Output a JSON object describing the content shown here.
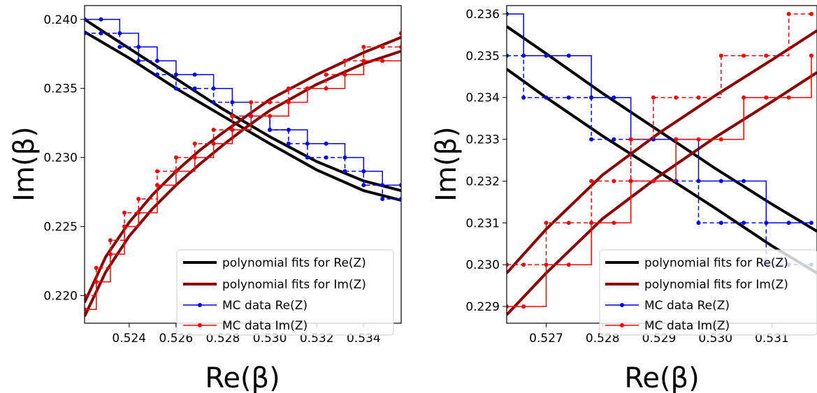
{
  "chart_data": [
    {
      "type": "line",
      "xlabel": "Re(β)",
      "ylabel": "Im(β)",
      "xlim": [
        0.5221,
        0.5356
      ],
      "ylim": [
        0.218,
        0.241
      ],
      "xticks": [
        "0.524",
        "0.526",
        "0.528",
        "0.530",
        "0.532",
        "0.534"
      ],
      "yticks": [
        "0.220",
        "0.225",
        "0.230",
        "0.235",
        "0.240"
      ],
      "legend_position": "lower-right",
      "legend": [
        "polynomial fits for Re(Z)",
        "polynomial fits for Im(Z)",
        "MC data Re(Z)",
        "MC data Im(Z)"
      ],
      "series": [
        {
          "name": "polynomial fits for Re(Z)",
          "style": "solid-thick",
          "color": "#000000",
          "x": [
            0.5221,
            0.524,
            0.526,
            0.528,
            0.53,
            0.532,
            0.534,
            0.5356
          ],
          "y": [
            0.24,
            0.2379,
            0.2357,
            0.2335,
            0.2315,
            0.2297,
            0.2283,
            0.2276
          ]
        },
        {
          "name": "polynomial fits for Re(Z)",
          "style": "solid-thick",
          "color": "#000000",
          "x": [
            0.5221,
            0.524,
            0.526,
            0.528,
            0.53,
            0.532,
            0.534,
            0.5356
          ],
          "y": [
            0.2391,
            0.2372,
            0.235,
            0.233,
            0.231,
            0.2291,
            0.2276,
            0.2269
          ]
        },
        {
          "name": "polynomial fits for Im(Z)",
          "style": "solid-thick",
          "color": "#8b0000",
          "x": [
            0.5221,
            0.523,
            0.524,
            0.525,
            0.526,
            0.527,
            0.528,
            0.529,
            0.53,
            0.532,
            0.534,
            0.5356
          ],
          "y": [
            0.2195,
            0.2228,
            0.2253,
            0.2273,
            0.229,
            0.2305,
            0.2318,
            0.233,
            0.2342,
            0.236,
            0.2376,
            0.2387
          ]
        },
        {
          "name": "polynomial fits for Im(Z)",
          "style": "solid-thick",
          "color": "#8b0000",
          "x": [
            0.5221,
            0.523,
            0.524,
            0.525,
            0.526,
            0.527,
            0.528,
            0.529,
            0.53,
            0.532,
            0.534,
            0.5356
          ],
          "y": [
            0.2185,
            0.2217,
            0.2243,
            0.2263,
            0.228,
            0.2295,
            0.2309,
            0.2322,
            0.2334,
            0.2353,
            0.2368,
            0.2377
          ]
        },
        {
          "name": "MC data Re(Z)",
          "style": "solid-markers",
          "color": "#0000ff",
          "x": [
            0.5221,
            0.5228,
            0.5236,
            0.5244,
            0.5252,
            0.526,
            0.5268,
            0.5276,
            0.5284,
            0.5292,
            0.53,
            0.5308,
            0.5316,
            0.5324,
            0.5332,
            0.534,
            0.5348,
            0.5356
          ],
          "y": [
            0.24,
            0.24,
            0.239,
            0.238,
            0.237,
            0.236,
            0.236,
            0.235,
            0.234,
            0.233,
            0.232,
            0.232,
            0.231,
            0.231,
            0.23,
            0.229,
            0.228,
            0.228
          ]
        },
        {
          "name": "MC data Re(Z)",
          "style": "dashed-markers",
          "color": "#0000ff",
          "x": [
            0.5221,
            0.5228,
            0.5236,
            0.5244,
            0.5252,
            0.526,
            0.5268,
            0.5276,
            0.5284,
            0.5292,
            0.53,
            0.5308,
            0.5316,
            0.5324,
            0.5332,
            0.534,
            0.5348,
            0.5356
          ],
          "y": [
            0.239,
            0.239,
            0.238,
            0.237,
            0.236,
            0.235,
            0.235,
            0.234,
            0.233,
            0.233,
            0.232,
            0.231,
            0.23,
            0.23,
            0.229,
            0.228,
            0.227,
            0.227
          ]
        },
        {
          "name": "MC data Im(Z)",
          "style": "solid-markers",
          "color": "#ff0000",
          "x": [
            0.5221,
            0.5226,
            0.5232,
            0.5238,
            0.5244,
            0.5252,
            0.526,
            0.5268,
            0.5276,
            0.5284,
            0.5292,
            0.53,
            0.5308,
            0.5316,
            0.5324,
            0.5332,
            0.534,
            0.5348,
            0.5356
          ],
          "y": [
            0.219,
            0.221,
            0.223,
            0.225,
            0.226,
            0.228,
            0.229,
            0.23,
            0.231,
            0.232,
            0.233,
            0.233,
            0.234,
            0.235,
            0.235,
            0.236,
            0.237,
            0.237,
            0.238
          ]
        },
        {
          "name": "MC data Im(Z)",
          "style": "dashed-markers",
          "color": "#ff0000",
          "x": [
            0.5221,
            0.5226,
            0.5232,
            0.5238,
            0.5244,
            0.5252,
            0.526,
            0.5268,
            0.5276,
            0.5284,
            0.5292,
            0.53,
            0.5308,
            0.5316,
            0.5324,
            0.5332,
            0.534,
            0.5348,
            0.5356
          ],
          "y": [
            0.22,
            0.222,
            0.224,
            0.226,
            0.227,
            0.229,
            0.23,
            0.231,
            0.232,
            0.233,
            0.234,
            0.234,
            0.235,
            0.235,
            0.236,
            0.237,
            0.238,
            0.238,
            0.239
          ]
        }
      ]
    },
    {
      "type": "line",
      "xlabel": "Re(β)",
      "ylabel": "Im(β)",
      "xlim": [
        0.5263,
        0.5318
      ],
      "ylim": [
        0.2286,
        0.2362
      ],
      "xticks": [
        "0.527",
        "0.528",
        "0.529",
        "0.530",
        "0.531"
      ],
      "yticks": [
        "0.229",
        "0.230",
        "0.231",
        "0.232",
        "0.233",
        "0.234",
        "0.235",
        "0.236"
      ],
      "legend_position": "lower-right",
      "legend": [
        "polynomial fits for Re(Z)",
        "polynomial fits for Im(Z)",
        "MC data Re(Z)",
        "MC data Im(Z)"
      ],
      "series": [
        {
          "name": "polynomial fits for Re(Z)",
          "style": "solid-thick",
          "color": "#000000",
          "x": [
            0.5263,
            0.527,
            0.528,
            0.529,
            0.53,
            0.531,
            0.5318
          ],
          "y": [
            0.2357,
            0.23505,
            0.2341,
            0.2332,
            0.2323,
            0.23145,
            0.2308
          ]
        },
        {
          "name": "polynomial fits for Re(Z)",
          "style": "solid-thick",
          "color": "#000000",
          "x": [
            0.5263,
            0.527,
            0.528,
            0.529,
            0.53,
            0.531,
            0.5318
          ],
          "y": [
            0.23468,
            0.234,
            0.23308,
            0.23222,
            0.23135,
            0.23045,
            0.2298
          ]
        },
        {
          "name": "polynomial fits for Im(Z)",
          "style": "solid-thick",
          "color": "#8b0000",
          "x": [
            0.5263,
            0.527,
            0.528,
            0.529,
            0.53,
            0.531,
            0.5318
          ],
          "y": [
            0.2298,
            0.23085,
            0.23215,
            0.23315,
            0.23405,
            0.2349,
            0.2356
          ]
        },
        {
          "name": "polynomial fits for Im(Z)",
          "style": "solid-thick",
          "color": "#8b0000",
          "x": [
            0.5263,
            0.527,
            0.528,
            0.529,
            0.53,
            0.531,
            0.5318
          ],
          "y": [
            0.2288,
            0.2298,
            0.2311,
            0.23212,
            0.23305,
            0.2339,
            0.2346
          ]
        },
        {
          "name": "MC data Re(Z)",
          "style": "solid-markers",
          "color": "#0000ff",
          "x": [
            0.5263,
            0.5266,
            0.527,
            0.5274,
            0.5278,
            0.5282,
            0.5285,
            0.5289,
            0.5293,
            0.5297,
            0.5301,
            0.5305,
            0.5309,
            0.5313,
            0.5317
          ],
          "y": [
            0.236,
            0.235,
            0.235,
            0.235,
            0.234,
            0.234,
            0.233,
            0.233,
            0.233,
            0.232,
            0.232,
            0.232,
            0.231,
            0.231,
            0.231
          ]
        },
        {
          "name": "MC data Re(Z)",
          "style": "dashed-markers",
          "color": "#0000ff",
          "x": [
            0.5263,
            0.5266,
            0.527,
            0.5274,
            0.5278,
            0.5282,
            0.5285,
            0.5289,
            0.5293,
            0.5297,
            0.5301,
            0.5305,
            0.5309,
            0.5313,
            0.5317
          ],
          "y": [
            0.235,
            0.234,
            0.234,
            0.234,
            0.233,
            0.233,
            0.232,
            0.232,
            0.232,
            0.231,
            0.231,
            0.231,
            0.23,
            0.23,
            0.23
          ]
        },
        {
          "name": "MC data Im(Z)",
          "style": "solid-markers",
          "color": "#ff0000",
          "x": [
            0.5263,
            0.5266,
            0.527,
            0.5274,
            0.5278,
            0.5282,
            0.5285,
            0.5289,
            0.5293,
            0.5297,
            0.5301,
            0.5305,
            0.5309,
            0.5313,
            0.5317
          ],
          "y": [
            0.229,
            0.229,
            0.23,
            0.23,
            0.231,
            0.231,
            0.232,
            0.232,
            0.233,
            0.233,
            0.233,
            0.234,
            0.234,
            0.234,
            0.235
          ]
        },
        {
          "name": "MC data Im(Z)",
          "style": "dashed-markers",
          "color": "#ff0000",
          "x": [
            0.5263,
            0.5266,
            0.527,
            0.5274,
            0.5278,
            0.5282,
            0.5285,
            0.5289,
            0.5293,
            0.5297,
            0.5301,
            0.5305,
            0.5309,
            0.5313,
            0.5317
          ],
          "y": [
            0.23,
            0.23,
            0.231,
            0.231,
            0.232,
            0.232,
            0.233,
            0.234,
            0.234,
            0.234,
            0.235,
            0.235,
            0.235,
            0.236,
            0.236
          ]
        }
      ]
    }
  ]
}
